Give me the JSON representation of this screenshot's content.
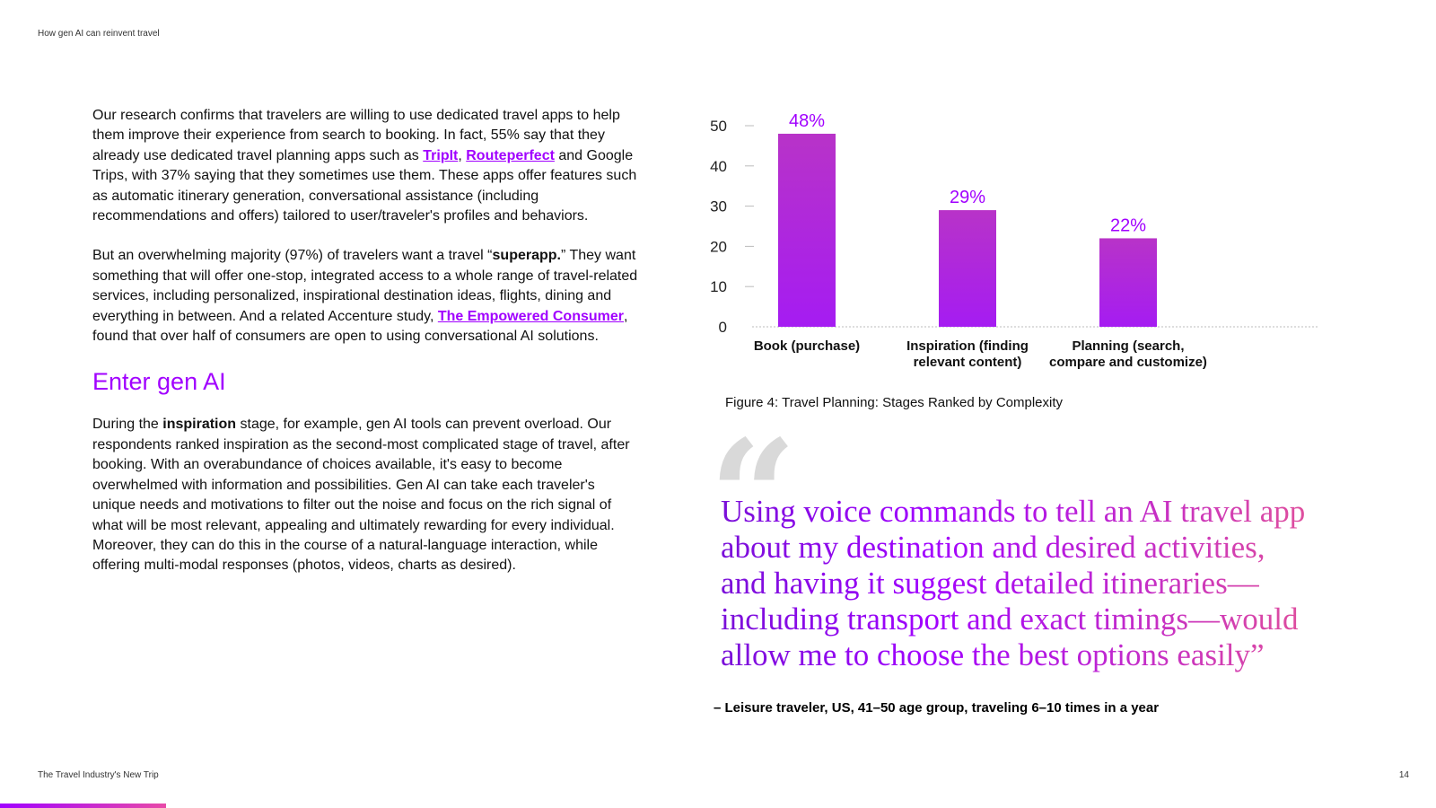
{
  "header": {
    "running_title": "How gen AI can reinvent travel"
  },
  "footer": {
    "doc_title": "The Travel Industry's New Trip",
    "page_number": "14"
  },
  "body": {
    "p1": {
      "t1": "Our research confirms that travelers are willing to use dedicated travel apps to help them improve their experience from search to booking. In fact, 55% say that they already use dedicated travel planning apps such as ",
      "link1": "TripIt",
      "t2": ", ",
      "link2": "Routeperfect",
      "t3": " and Google Trips, with 37% saying that they sometimes use them. These apps offer features such as automatic itinerary generation, conversational assistance (including recommendations and offers) tailored to user/traveler's profiles and behaviors."
    },
    "p2": {
      "t1": "But an overwhelming majority (97%) of travelers want a travel “",
      "bold": "superapp.",
      "t2": "” They want something that will offer one-stop, integrated access to a whole range of travel-related services, including personalized, inspirational destination ideas, flights, dining and everything in between. And a related Accenture study, ",
      "link": "The Empowered Consumer",
      "t3": ", found that over half of consumers are open to using conversational AI solutions."
    },
    "section_heading": "Enter gen AI",
    "p3": {
      "t1": "During the ",
      "bold": "inspiration",
      "t2": " stage, for example, gen AI tools can prevent overload. Our respondents ranked inspiration as the second-most complicated stage of travel, after booking. With an overabundance of choices available, it's easy to become overwhelmed with information and possibilities. Gen AI can take each traveler's unique needs and motivations to filter out the noise and focus on the rich signal of what will be most relevant, appealing and ultimately rewarding for every individual. Moreover, they can do this in the course of a natural-language interaction, while offering multi-modal responses (photos, videos, charts as desired)."
    }
  },
  "figure": {
    "caption": "Figure 4: Travel Planning: Stages Ranked by Complexity"
  },
  "chart_data": {
    "type": "bar",
    "categories": [
      [
        "Book (purchase)"
      ],
      [
        "Inspiration (finding",
        "relevant content)"
      ],
      [
        "Planning (search,",
        "compare and customize)"
      ]
    ],
    "values": [
      48,
      29,
      22
    ],
    "value_labels": [
      "48%",
      "29%",
      "22%"
    ],
    "yticks": [
      0,
      10,
      20,
      30,
      40,
      50
    ],
    "ylim": [
      0,
      50
    ],
    "grid": false,
    "colors": {
      "bar_top": "#b833c8",
      "bar_bottom": "#a51cf2",
      "label": "#a100ff"
    }
  },
  "quote": {
    "mark": "“",
    "text": "Using voice commands to tell an AI travel app about my destination and desired activities, and having it suggest detailed itineraries—including transport and exact timings—would allow me to choose the best options easily”",
    "attribution": "– Leisure traveler, US, 41–50 age group, traveling 6–10 times in a year"
  },
  "colors": {
    "accent": "#a100ff",
    "accent_pink": "#e0509c"
  }
}
